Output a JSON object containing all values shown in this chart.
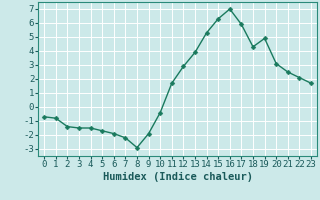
{
  "x": [
    0,
    1,
    2,
    3,
    4,
    5,
    6,
    7,
    8,
    9,
    10,
    11,
    12,
    13,
    14,
    15,
    16,
    17,
    18,
    19,
    20,
    21,
    22,
    23
  ],
  "y": [
    -0.7,
    -0.8,
    -1.4,
    -1.5,
    -1.5,
    -1.7,
    -1.9,
    -2.2,
    -2.9,
    -1.9,
    -0.4,
    1.7,
    2.9,
    3.9,
    5.3,
    6.3,
    7.0,
    5.9,
    4.3,
    4.9,
    3.1,
    2.5,
    2.1,
    1.7
  ],
  "line_color": "#1a7a5e",
  "marker": "D",
  "markersize": 2.5,
  "linewidth": 1.0,
  "bg_color": "#cce9e9",
  "grid_color": "#b0d8d8",
  "grid_color_major": "#ffffff",
  "xlabel": "Humidex (Indice chaleur)",
  "xlabel_fontsize": 7.5,
  "xlabel_fontweight": "bold",
  "xlim": [
    -0.5,
    23.5
  ],
  "ylim": [
    -3.5,
    7.5
  ],
  "yticks": [
    -3,
    -2,
    -1,
    0,
    1,
    2,
    3,
    4,
    5,
    6,
    7
  ],
  "xticks": [
    0,
    1,
    2,
    3,
    4,
    5,
    6,
    7,
    8,
    9,
    10,
    11,
    12,
    13,
    14,
    15,
    16,
    17,
    18,
    19,
    20,
    21,
    22,
    23
  ],
  "tick_fontsize": 6.5
}
